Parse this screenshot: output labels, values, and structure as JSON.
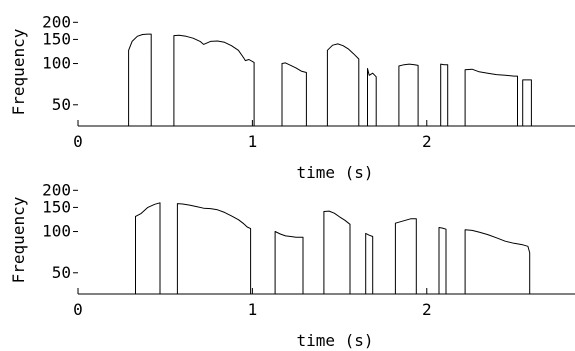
{
  "chart_data": [
    {
      "type": "line",
      "title": "",
      "xlabel": "time (s)",
      "ylabel": "Frequency",
      "xlim": [
        0,
        2.85
      ],
      "ylim": [
        35,
        215
      ],
      "yscale": "log",
      "grid": false,
      "xticks": [
        0,
        1,
        2
      ],
      "xtick_labels": [
        "0",
        "1",
        "2"
      ],
      "yticks": [
        50,
        100,
        150,
        200
      ],
      "ytick_labels": [
        "50",
        "100",
        "150",
        "200"
      ],
      "segments": [
        {
          "x": [
            0.29,
            0.31,
            0.34,
            0.37,
            0.4,
            0.42
          ],
          "y": [
            125,
            145,
            158,
            163,
            164,
            164
          ]
        },
        {
          "x": [
            0.55,
            0.58,
            0.62,
            0.66,
            0.7,
            0.72,
            0.76,
            0.8,
            0.84,
            0.88,
            0.92,
            0.95,
            0.96,
            0.98,
            1.01
          ],
          "y": [
            160,
            161,
            158,
            153,
            145,
            138,
            145,
            146,
            143,
            135,
            125,
            110,
            105,
            107,
            102
          ]
        },
        {
          "x": [
            1.17,
            1.19,
            1.22,
            1.25,
            1.28,
            1.31
          ],
          "y": [
            100,
            101,
            97,
            93,
            88,
            86
          ]
        },
        {
          "x": [
            1.43,
            1.46,
            1.49,
            1.52,
            1.55,
            1.58,
            1.61
          ],
          "y": [
            125,
            136,
            139,
            135,
            128,
            118,
            108
          ]
        },
        {
          "x": [
            1.66,
            1.67,
            1.69,
            1.71
          ],
          "y": [
            92,
            82,
            85,
            80
          ]
        },
        {
          "x": [
            1.84,
            1.87,
            1.9,
            1.93,
            1.95
          ],
          "y": [
            96,
            98,
            99,
            98,
            97
          ]
        },
        {
          "x": [
            2.08,
            2.1,
            2.12
          ],
          "y": [
            99,
            98,
            98
          ]
        },
        {
          "x": [
            2.22,
            2.26,
            2.3,
            2.35,
            2.4,
            2.45,
            2.5,
            2.52
          ],
          "y": [
            90,
            91,
            87,
            85,
            83,
            82,
            81,
            81
          ]
        },
        {
          "x": [
            2.55,
            2.58,
            2.6
          ],
          "y": [
            76,
            76,
            76
          ]
        }
      ]
    },
    {
      "type": "line",
      "title": "",
      "xlabel": "time (s)",
      "ylabel": "Frequency",
      "xlim": [
        0,
        2.85
      ],
      "ylim": [
        35,
        215
      ],
      "yscale": "log",
      "grid": false,
      "xticks": [
        0,
        1,
        2
      ],
      "xtick_labels": [
        "0",
        "1",
        "2"
      ],
      "yticks": [
        50,
        100,
        150,
        200
      ],
      "ytick_labels": [
        "50",
        "100",
        "150",
        "200"
      ],
      "segments": [
        {
          "x": [
            0.33,
            0.36,
            0.4,
            0.44,
            0.47
          ],
          "y": [
            129,
            135,
            150,
            158,
            162
          ]
        },
        {
          "x": [
            0.57,
            0.6,
            0.64,
            0.68,
            0.72,
            0.76,
            0.8,
            0.84,
            0.88,
            0.92,
            0.95,
            0.97,
            0.99
          ],
          "y": [
            160,
            159,
            156,
            152,
            148,
            147,
            144,
            138,
            130,
            122,
            114,
            108,
            105
          ]
        },
        {
          "x": [
            1.13,
            1.16,
            1.19,
            1.22,
            1.25,
            1.29
          ],
          "y": [
            100,
            96,
            93,
            92,
            91,
            91
          ]
        },
        {
          "x": [
            1.41,
            1.44,
            1.47,
            1.5,
            1.53,
            1.56
          ],
          "y": [
            140,
            141,
            136,
            128,
            121,
            113
          ]
        },
        {
          "x": [
            1.65,
            1.67,
            1.69
          ],
          "y": [
            97,
            94,
            92
          ]
        },
        {
          "x": [
            1.82,
            1.85,
            1.88,
            1.91,
            1.94
          ],
          "y": [
            115,
            118,
            121,
            124,
            124
          ]
        },
        {
          "x": [
            2.07,
            2.09,
            2.11
          ],
          "y": [
            107,
            106,
            104
          ]
        },
        {
          "x": [
            2.22,
            2.26,
            2.3,
            2.35,
            2.4,
            2.45,
            2.5,
            2.55,
            2.58,
            2.59
          ],
          "y": [
            103,
            102,
            99,
            95,
            90,
            85,
            82,
            80,
            78,
            70
          ]
        }
      ]
    }
  ]
}
